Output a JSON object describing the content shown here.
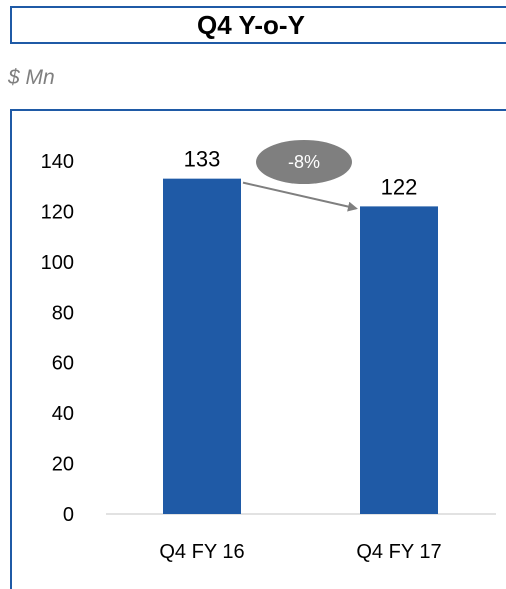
{
  "header": {
    "title": "Q4 Y-o-Y",
    "unit": "$ Mn"
  },
  "chart_data": {
    "type": "bar",
    "categories": [
      "Q4 FY 16",
      "Q4 FY 17"
    ],
    "values": [
      133,
      122
    ],
    "data_labels": [
      "133",
      "122"
    ],
    "ylim": [
      0,
      140
    ],
    "yticks": [
      0,
      20,
      40,
      60,
      80,
      100,
      120,
      140
    ],
    "grid": false,
    "bar_color": "#1f5aa6",
    "annotation": {
      "text": "-8%",
      "color": "#7f7f7f"
    }
  }
}
